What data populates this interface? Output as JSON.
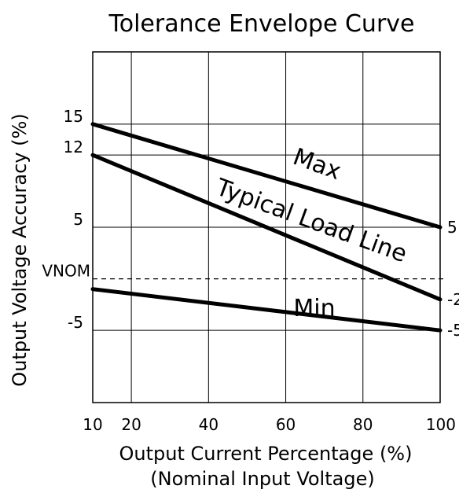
{
  "chart_data": {
    "type": "line",
    "title": "Tolerance Envelope Curve",
    "xlabel": "Output Current Percentage (%)",
    "xlabel_sub": "(Nominal Input Voltage)",
    "ylabel": "Output Voltage Accuracy (%)",
    "xlim": [
      10,
      100
    ],
    "ylim": [
      -12,
      22
    ],
    "grid": true,
    "x_ticks": [
      10,
      20,
      40,
      60,
      80,
      100
    ],
    "x_tick_labels": [
      "10",
      "20",
      "40",
      "60",
      "80",
      "100"
    ],
    "y_ticks": [
      15,
      12,
      5,
      0,
      -5
    ],
    "y_tick_labels": [
      "15",
      "12",
      "5",
      "VNOM",
      "-5"
    ],
    "reference_line": {
      "label": "VNOM",
      "y": 0,
      "style": "dashed"
    },
    "series": [
      {
        "name": "Max",
        "x": [
          10,
          100
        ],
        "y": [
          15,
          5
        ],
        "end_label": "5"
      },
      {
        "name": "Typical Load Line",
        "x": [
          10,
          100
        ],
        "y": [
          12,
          -2
        ],
        "end_label": "-2"
      },
      {
        "name": "Min",
        "x": [
          10,
          100
        ],
        "y": [
          -1,
          -5
        ],
        "end_label": "-5"
      }
    ],
    "colors": {
      "line": "#000000",
      "grid": "#000000",
      "background": "#ffffff"
    }
  }
}
